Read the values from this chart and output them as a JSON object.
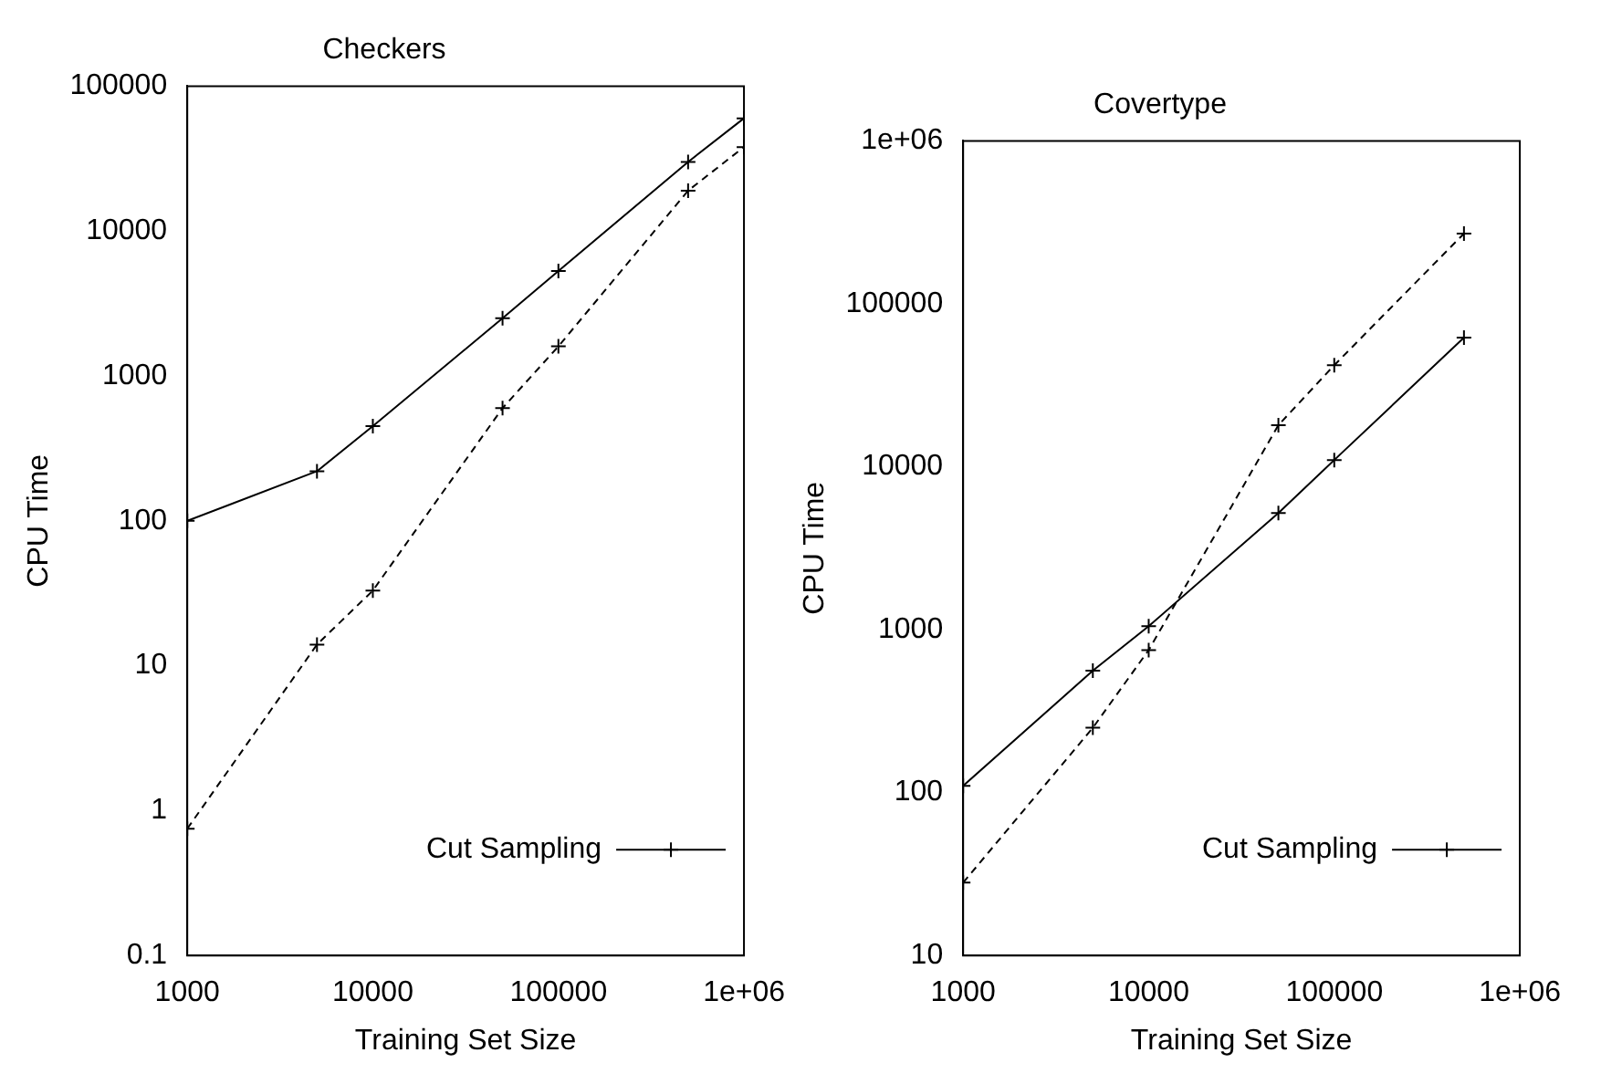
{
  "chart_data": [
    {
      "type": "line",
      "title": "Checkers",
      "xlabel": "Training Set Size",
      "ylabel": "CPU Time",
      "log": "xy",
      "grid": false,
      "legend": "bottom right",
      "xlim": [
        1000,
        1000000
      ],
      "xticks": [
        1000,
        10000,
        100000,
        {
          "value": 1000000,
          "label": "1e+06"
        }
      ],
      "ylim": [
        0.1,
        100000
      ],
      "yticks": [
        0.1,
        1,
        10,
        100,
        1000,
        10000,
        100000
      ],
      "series": [
        {
          "name": "Cut Sampling",
          "color": "#000000",
          "marker": "cross",
          "line_style": "solid",
          "x": [
            1000,
            5000,
            10000,
            50000,
            100000,
            500000,
            1000000
          ],
          "values": [
            100,
            220,
            450,
            2500,
            5300,
            30000,
            60000
          ]
        },
        {
          "color": "#000000",
          "marker": "cross",
          "line_style": "dashed",
          "x": [
            1000,
            5000,
            10000,
            50000,
            100000,
            500000,
            1000000
          ],
          "values": [
            0.75,
            14,
            33,
            600,
            1600,
            19000,
            38000
          ]
        }
      ]
    },
    {
      "type": "line",
      "title": "Covertype",
      "xlabel": "Training Set Size",
      "ylabel": "CPU Time",
      "log": "xy",
      "grid": false,
      "legend": "bottom right",
      "xlim": [
        1000,
        1000000
      ],
      "xticks": [
        1000,
        10000,
        100000,
        {
          "value": 1000000,
          "label": "1e+06"
        }
      ],
      "ylim": [
        10,
        1000000
      ],
      "yticks": [
        10,
        100,
        1000,
        10000,
        100000,
        {
          "value": 1000000,
          "label": "1e+06"
        }
      ],
      "series": [
        {
          "name": "Cut Sampling",
          "color": "#000000",
          "marker": "cross",
          "line_style": "solid",
          "x": [
            1000,
            5000,
            10000,
            50000,
            100000,
            500000
          ],
          "values": [
            110,
            560,
            1050,
            5200,
            11000,
            62000
          ]
        },
        {
          "color": "#000000",
          "marker": "cross",
          "line_style": "dashed",
          "x": [
            1000,
            5000,
            10000,
            50000,
            100000,
            500000
          ],
          "values": [
            28,
            250,
            750,
            18000,
            42000,
            270000
          ]
        }
      ]
    }
  ]
}
